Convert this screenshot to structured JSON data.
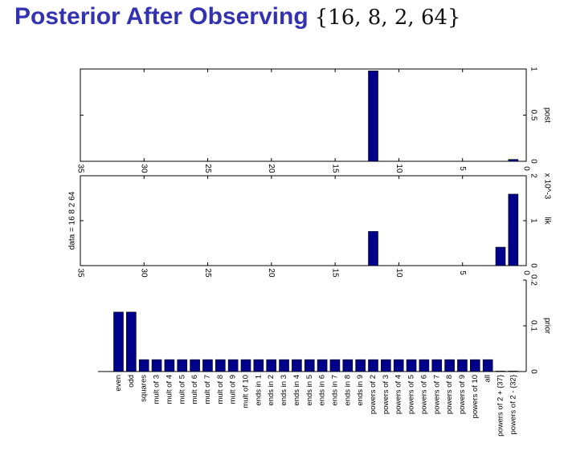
{
  "slide": {
    "title": "Posterior After Observing",
    "title_math": "{16, 8, 2, 64}"
  },
  "colors": {
    "bar": "#00008b",
    "title": "#3333b2",
    "axis": "#000000"
  },
  "chart_data": [
    {
      "type": "bar",
      "orientation": "vertical-with-rotated-axes",
      "ylabel": "post",
      "ylim": [
        0,
        1
      ],
      "y_ticks": [
        0,
        0.5,
        1
      ],
      "x_ticks": [
        0,
        5,
        10,
        15,
        20,
        25,
        30,
        35
      ],
      "xlim": [
        0,
        35
      ],
      "grid": false,
      "values": [
        {
          "category": "powers of 2",
          "value": 0.98
        },
        {
          "category": "powers of 2 - {32}",
          "value": 0.02
        }
      ]
    },
    {
      "type": "bar",
      "orientation": "vertical-with-rotated-axes",
      "ylabel": "lik",
      "y_multiplier": "x 10^-3",
      "ylim": [
        0,
        2
      ],
      "y_ticks": [
        0,
        1,
        2
      ],
      "x_ticks": [
        0,
        5,
        10,
        15,
        20,
        25,
        30,
        35
      ],
      "xlim": [
        0,
        35
      ],
      "side_label": "data = 16   8   2  64",
      "grid": false,
      "values": [
        {
          "category": "powers of 2",
          "value": 0.76
        },
        {
          "category": "powers of 2 + {37}",
          "value": 0.41
        },
        {
          "category": "powers of 2 - {32}",
          "value": 1.59
        }
      ]
    },
    {
      "type": "bar",
      "ylabel": "prior",
      "ylim": [
        0,
        0.2
      ],
      "y_ticks": [
        0,
        0.1,
        0.2
      ],
      "grid": false,
      "categories": [
        "even",
        "odd",
        "squares",
        "mult of 3",
        "mult of 4",
        "mult of 5",
        "mult of 6",
        "mult of 7",
        "mult of 8",
        "mult of 9",
        "mult of 10",
        "ends in 1",
        "ends in 2",
        "ends in 3",
        "ends in 4",
        "ends in 5",
        "ends in 6",
        "ends in 7",
        "ends in 8",
        "ends in 9",
        "powers of 2",
        "powers of 3",
        "powers of 4",
        "powers of 5",
        "powers of 6",
        "powers of 7",
        "powers of 8",
        "powers of 9",
        "powers of 10",
        "all",
        "powers of 2 + {37}",
        "powers of 2 - {32}"
      ],
      "values": [
        0.13,
        0.13,
        0.026,
        0.026,
        0.026,
        0.026,
        0.026,
        0.026,
        0.026,
        0.026,
        0.026,
        0.026,
        0.026,
        0.026,
        0.026,
        0.026,
        0.026,
        0.026,
        0.026,
        0.026,
        0.026,
        0.026,
        0.026,
        0.026,
        0.026,
        0.026,
        0.026,
        0.026,
        0.026,
        0.026,
        0.001,
        0.001
      ]
    }
  ]
}
